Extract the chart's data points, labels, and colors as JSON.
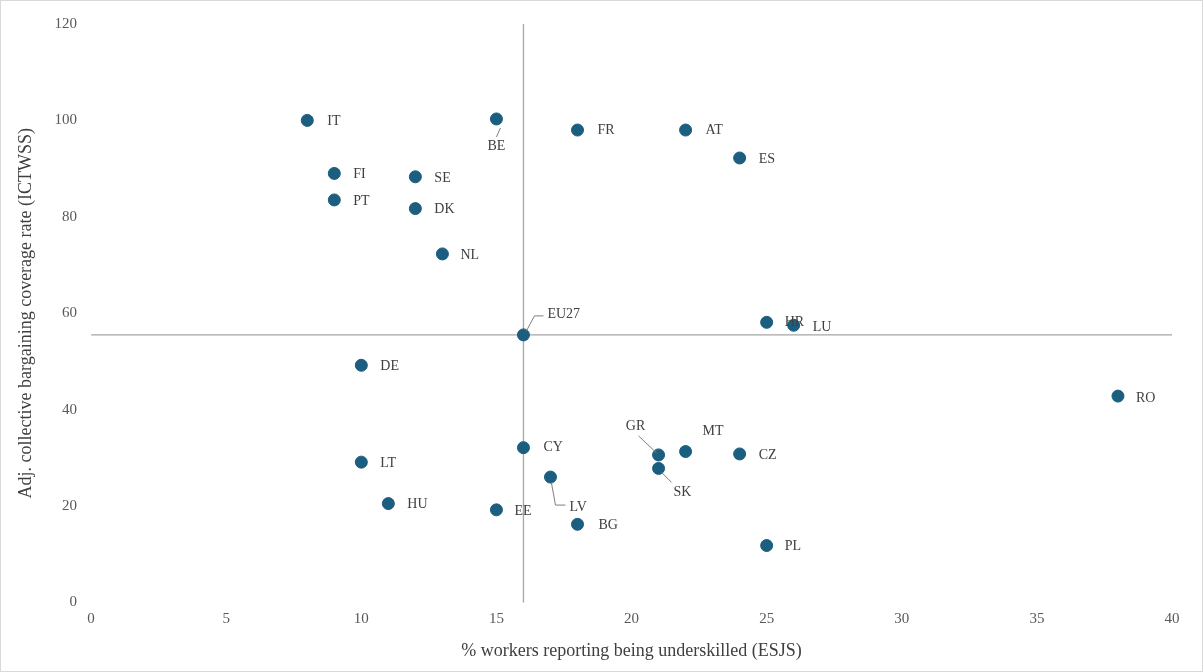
{
  "chart_data": {
    "type": "scatter",
    "xlabel": "% workers reporting being underskilled (ESJS)",
    "ylabel": "Adj. collective bargaining coverage rate (ICTWSS)",
    "x": [
      8,
      15,
      18,
      22,
      24,
      9,
      12,
      9,
      12,
      13,
      16,
      25,
      26,
      10,
      38,
      16,
      21,
      22,
      24,
      10,
      17,
      21,
      11,
      15,
      18,
      25
    ],
    "values": [
      100,
      100.3,
      98,
      98,
      92.2,
      89,
      88.3,
      83.5,
      81.7,
      72.3,
      55.5,
      58.1,
      57.5,
      49.2,
      42.8,
      32.1,
      30.6,
      31.3,
      30.8,
      29.1,
      26,
      27.8,
      20.5,
      19.2,
      16.2,
      11.8
    ],
    "color": "#1b5e7f",
    "marker": "circle",
    "grid": false,
    "legend": false,
    "xlim": [
      0,
      40
    ],
    "xticks": [
      0,
      5,
      10,
      15,
      20,
      25,
      30,
      35,
      40
    ],
    "ylim": [
      0,
      120
    ],
    "yticks": [
      0,
      20,
      40,
      60,
      80,
      100,
      120
    ],
    "ref_lines": [
      {
        "axis": "x",
        "value": 16,
        "color": "#a6a6a6"
      },
      {
        "axis": "y",
        "value": 55.5,
        "color": "#a6a6a6"
      }
    ],
    "annotations": [
      {
        "text": "IT",
        "x": 8,
        "y": 100
      },
      {
        "text": "BE",
        "x": 15,
        "y": 100.3
      },
      {
        "text": "FR",
        "x": 18,
        "y": 98
      },
      {
        "text": "AT",
        "x": 22,
        "y": 98
      },
      {
        "text": "ES",
        "x": 24,
        "y": 92.2
      },
      {
        "text": "FI",
        "x": 9,
        "y": 89
      },
      {
        "text": "SE",
        "x": 12,
        "y": 88.3
      },
      {
        "text": "PT",
        "x": 9,
        "y": 83.5
      },
      {
        "text": "DK",
        "x": 12,
        "y": 81.7
      },
      {
        "text": "NL",
        "x": 13,
        "y": 72.3
      },
      {
        "text": "EU27",
        "x": 16,
        "y": 55.5
      },
      {
        "text": "HR",
        "x": 25,
        "y": 58.1
      },
      {
        "text": "LU",
        "x": 26,
        "y": 57.5
      },
      {
        "text": "DE",
        "x": 10,
        "y": 49.2
      },
      {
        "text": "RO",
        "x": 38,
        "y": 42.8
      },
      {
        "text": "CY",
        "x": 16,
        "y": 32.1
      },
      {
        "text": "GR",
        "x": 21,
        "y": 30.6
      },
      {
        "text": "MT",
        "x": 22,
        "y": 31.3
      },
      {
        "text": "CZ",
        "x": 24,
        "y": 30.8
      },
      {
        "text": "LT",
        "x": 10,
        "y": 29.1
      },
      {
        "text": "LV",
        "x": 17,
        "y": 26
      },
      {
        "text": "SK",
        "x": 21,
        "y": 27.8
      },
      {
        "text": "HU",
        "x": 11,
        "y": 20.5
      },
      {
        "text": "EE",
        "x": 15,
        "y": 19.2
      },
      {
        "text": "BG",
        "x": 18,
        "y": 16.2
      },
      {
        "text": "PL",
        "x": 25,
        "y": 11.8
      }
    ]
  }
}
